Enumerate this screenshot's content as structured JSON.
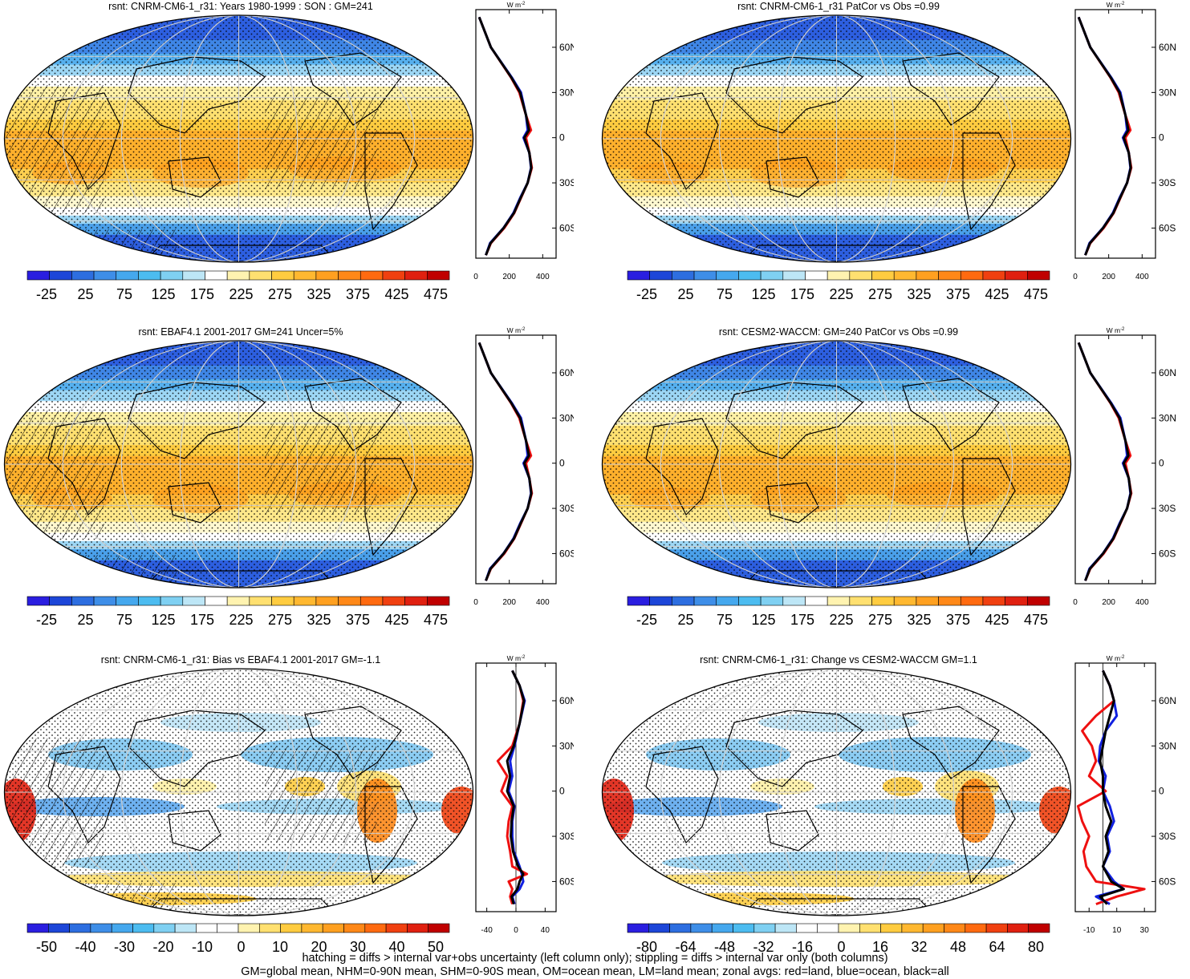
{
  "panels": [
    {
      "id": "p1",
      "title": "rsnt: CNRM-CM6-1_r31: Years 1980-1999 : SON : GM=241",
      "map_kind": "clim",
      "hatched": true,
      "colorbar": {
        "labels": [
          "-25",
          "25",
          "75",
          "125",
          "175",
          "225",
          "275",
          "325",
          "375",
          "425",
          "475"
        ],
        "colors": [
          "#2a1ee0",
          "#1d46d8",
          "#2d6ee0",
          "#3e8ee8",
          "#45a8ee",
          "#4cbcf0",
          "#7fd0f2",
          "#bde6f6",
          "#ffffff",
          "#fff3b0",
          "#ffe070",
          "#ffcc40",
          "#ffb830",
          "#ffa020",
          "#ff8818",
          "#ff6a10",
          "#f04010",
          "#e02010",
          "#c00000"
        ]
      },
      "zonal": {
        "x_ticks": [
          "0",
          "200",
          "400"
        ],
        "xlim": [
          0,
          480
        ],
        "zero_line": false
      }
    },
    {
      "id": "p2",
      "title": "rsnt: CNRM-CM6-1_r31 PatCor vs Obs =0.99",
      "map_kind": "clim",
      "hatched": false,
      "colorbar": {
        "labels": [
          "-25",
          "25",
          "75",
          "125",
          "175",
          "225",
          "275",
          "325",
          "375",
          "425",
          "475"
        ],
        "colors": [
          "#2a1ee0",
          "#1d46d8",
          "#2d6ee0",
          "#3e8ee8",
          "#45a8ee",
          "#4cbcf0",
          "#7fd0f2",
          "#bde6f6",
          "#ffffff",
          "#fff3b0",
          "#ffe070",
          "#ffcc40",
          "#ffb830",
          "#ffa020",
          "#ff8818",
          "#ff6a10",
          "#f04010",
          "#e02010",
          "#c00000"
        ]
      },
      "zonal": {
        "x_ticks": [
          "0",
          "200",
          "400"
        ],
        "xlim": [
          0,
          480
        ],
        "zero_line": false
      }
    },
    {
      "id": "p3",
      "title": "rsnt: EBAF4.1 2001-2017 GM=241 Uncer=5%",
      "map_kind": "clim",
      "hatched": true,
      "colorbar": {
        "labels": [
          "-25",
          "25",
          "75",
          "125",
          "175",
          "225",
          "275",
          "325",
          "375",
          "425",
          "475"
        ],
        "colors": [
          "#2a1ee0",
          "#1d46d8",
          "#2d6ee0",
          "#3e8ee8",
          "#45a8ee",
          "#4cbcf0",
          "#7fd0f2",
          "#bde6f6",
          "#ffffff",
          "#fff3b0",
          "#ffe070",
          "#ffcc40",
          "#ffb830",
          "#ffa020",
          "#ff8818",
          "#ff6a10",
          "#f04010",
          "#e02010",
          "#c00000"
        ]
      },
      "zonal": {
        "x_ticks": [
          "0",
          "200",
          "400"
        ],
        "xlim": [
          0,
          480
        ],
        "zero_line": false
      }
    },
    {
      "id": "p4",
      "title": "rsnt: CESM2-WACCM: GM=240 PatCor vs Obs =0.99",
      "map_kind": "clim",
      "hatched": false,
      "colorbar": {
        "labels": [
          "-25",
          "25",
          "75",
          "125",
          "175",
          "225",
          "275",
          "325",
          "375",
          "425",
          "475"
        ],
        "colors": [
          "#2a1ee0",
          "#1d46d8",
          "#2d6ee0",
          "#3e8ee8",
          "#45a8ee",
          "#4cbcf0",
          "#7fd0f2",
          "#bde6f6",
          "#ffffff",
          "#fff3b0",
          "#ffe070",
          "#ffcc40",
          "#ffb830",
          "#ffa020",
          "#ff8818",
          "#ff6a10",
          "#f04010",
          "#e02010",
          "#c00000"
        ]
      },
      "zonal": {
        "x_ticks": [
          "0",
          "200",
          "400"
        ],
        "xlim": [
          0,
          480
        ],
        "zero_line": false
      }
    },
    {
      "id": "p5",
      "title": "rsnt: CNRM-CM6-1_r31: Bias vs EBAF4.1 2001-2017  GM=-1.1",
      "map_kind": "diff",
      "hatched": true,
      "colorbar": {
        "labels": [
          "-50",
          "-40",
          "-30",
          "-20",
          "-10",
          "0",
          "10",
          "20",
          "30",
          "40",
          "50"
        ],
        "colors": [
          "#2a1ee0",
          "#1d46d8",
          "#2d6ee0",
          "#3e8ee8",
          "#45a8ee",
          "#4cbcf0",
          "#7fd0f2",
          "#bde6f6",
          "#ffffff",
          "#ffffff",
          "#fff3b0",
          "#ffe070",
          "#ffcc40",
          "#ffb830",
          "#ffa020",
          "#ff8818",
          "#ff6a10",
          "#f04010",
          "#e02010",
          "#c00000"
        ]
      },
      "zonal": {
        "x_ticks": [
          "-40",
          "0",
          "40"
        ],
        "xlim": [
          -55,
          55
        ],
        "zero_line": true
      }
    },
    {
      "id": "p6",
      "title": "rsnt: CNRM-CM6-1_r31: Change vs CESM2-WACCM GM=1.1",
      "map_kind": "diff",
      "hatched": false,
      "colorbar": {
        "labels": [
          "-80",
          "-64",
          "-48",
          "-32",
          "-16",
          "0",
          "16",
          "32",
          "48",
          "64",
          "80"
        ],
        "colors": [
          "#2a1ee0",
          "#1d46d8",
          "#2d6ee0",
          "#3e8ee8",
          "#45a8ee",
          "#4cbcf0",
          "#7fd0f2",
          "#bde6f6",
          "#ffffff",
          "#ffffff",
          "#fff3b0",
          "#ffe070",
          "#ffcc40",
          "#ffb830",
          "#ffa020",
          "#ff8818",
          "#ff6a10",
          "#f04010",
          "#e02010",
          "#c00000"
        ]
      },
      "zonal": {
        "x_ticks": [
          "-10",
          "10",
          "30"
        ],
        "xlim": [
          -20,
          38
        ],
        "zero_line": true
      }
    }
  ],
  "zonal_common": {
    "unit_label": "W m",
    "unit_exp": "-2",
    "lat_ticks": [
      "60N",
      "30N",
      "0",
      "30S",
      "60S"
    ],
    "lat_values": [
      60,
      30,
      0,
      -30,
      -60
    ],
    "ylim": [
      -80,
      85
    ]
  },
  "chart_data": [
    {
      "type": "heatmap",
      "title": "rsnt: CNRM-CM6-1_r31: Years 1980-1999 : SON : GM=241",
      "colorbar_labels": [
        "-25",
        "25",
        "75",
        "125",
        "175",
        "225",
        "275",
        "325",
        "375",
        "425",
        "475"
      ],
      "zonal_profile": {
        "lat": [
          80,
          60,
          40,
          30,
          15,
          5,
          0,
          -10,
          -20,
          -30,
          -40,
          -50,
          -60,
          -70,
          -78
        ],
        "land": [
          20,
          90,
          210,
          260,
          300,
          330,
          300,
          320,
          335,
          310,
          270,
          230,
          170,
          90,
          60
        ],
        "ocean": [
          20,
          90,
          215,
          270,
          300,
          310,
          285,
          320,
          330,
          310,
          265,
          225,
          165,
          85,
          60
        ],
        "all": [
          20,
          90,
          212,
          265,
          300,
          318,
          290,
          320,
          332,
          310,
          268,
          228,
          166,
          88,
          60
        ]
      }
    },
    {
      "type": "heatmap",
      "title": "rsnt: CNRM-CM6-1_r31 PatCor vs Obs =0.99",
      "colorbar_labels": [
        "-25",
        "25",
        "75",
        "125",
        "175",
        "225",
        "275",
        "325",
        "375",
        "425",
        "475"
      ]
    },
    {
      "type": "heatmap",
      "title": "rsnt: EBAF4.1 2001-2017 GM=241 Uncer=5%",
      "colorbar_labels": [
        "-25",
        "25",
        "75",
        "125",
        "175",
        "225",
        "275",
        "325",
        "375",
        "425",
        "475"
      ]
    },
    {
      "type": "heatmap",
      "title": "rsnt: CESM2-WACCM: GM=240 PatCor vs Obs =0.99",
      "colorbar_labels": [
        "-25",
        "25",
        "75",
        "125",
        "175",
        "225",
        "275",
        "325",
        "375",
        "425",
        "475"
      ]
    },
    {
      "type": "heatmap",
      "title": "rsnt: CNRM-CM6-1_r31: Bias vs EBAF4.1 2001-2017  GM=-1.1",
      "colorbar_labels": [
        "-50",
        "-40",
        "-30",
        "-20",
        "-10",
        "0",
        "10",
        "20",
        "30",
        "40",
        "50"
      ],
      "zonal_profile": {
        "lat": [
          80,
          70,
          60,
          45,
          30,
          20,
          10,
          0,
          -10,
          -20,
          -30,
          -40,
          -50,
          -55,
          -60,
          -65,
          -70,
          -75
        ],
        "land": [
          -5,
          5,
          10,
          5,
          -5,
          -25,
          -12,
          -20,
          -5,
          -10,
          -12,
          -8,
          -5,
          15,
          -10,
          -5,
          -8,
          -5
        ],
        "ocean": [
          -5,
          5,
          12,
          5,
          -2,
          -8,
          -5,
          -10,
          -2,
          -5,
          -5,
          -3,
          5,
          8,
          10,
          5,
          -5,
          -2
        ],
        "all": [
          -5,
          5,
          11,
          5,
          -3,
          -12,
          -8,
          -12,
          -3,
          -6,
          -7,
          -4,
          3,
          10,
          5,
          2,
          -6,
          -3
        ]
      }
    },
    {
      "type": "heatmap",
      "title": "rsnt: CNRM-CM6-1_r31: Change vs CESM2-WACCM GM=1.1",
      "colorbar_labels": [
        "-80",
        "-64",
        "-48",
        "-32",
        "-16",
        "0",
        "16",
        "32",
        "48",
        "64",
        "80"
      ],
      "zonal_profile": {
        "lat": [
          80,
          70,
          60,
          50,
          40,
          30,
          20,
          10,
          0,
          -10,
          -20,
          -30,
          -40,
          -50,
          -60,
          -65,
          -70,
          -75
        ],
        "land": [
          0,
          5,
          8,
          -5,
          -15,
          -8,
          -5,
          -10,
          2,
          -18,
          -15,
          -10,
          -14,
          -12,
          -5,
          30,
          10,
          -5
        ],
        "ocean": [
          0,
          5,
          8,
          10,
          2,
          -2,
          -3,
          2,
          0,
          5,
          8,
          3,
          5,
          0,
          8,
          15,
          -5,
          5
        ],
        "all": [
          0,
          5,
          8,
          5,
          2,
          0,
          -2,
          0,
          0,
          2,
          6,
          2,
          4,
          0,
          6,
          15,
          -2,
          3
        ]
      }
    }
  ],
  "footer": {
    "line1": "hatching = diffs > internal var+obs uncertainty (left column only); stippling = diffs > internal var only (both columns)",
    "line2": "GM=global mean, NHM=0-90N mean, SHM=0-90S mean, OM=ocean mean, LM=land mean; zonal avgs: red=land, blue=ocean, black=all"
  }
}
